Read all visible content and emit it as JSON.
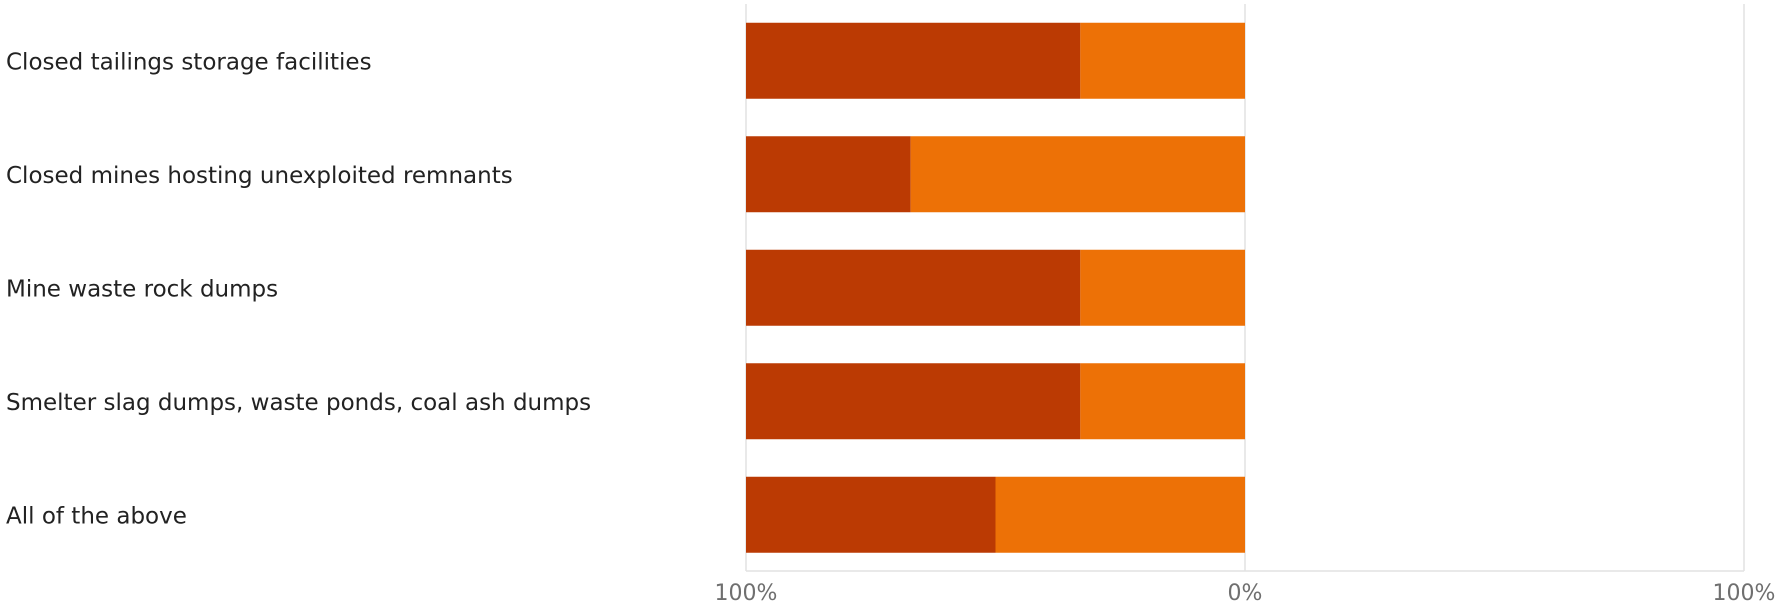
{
  "chart_data": {
    "type": "bar",
    "orientation": "horizontal",
    "stacked": true,
    "categories": [
      "Closed tailings storage facilities",
      "Closed mines hosting unexploited remnants",
      "Mine waste rock dumps",
      "Smelter slag dumps, waste ponds, coal ash dumps",
      "All of the above"
    ],
    "series": [
      {
        "values": [
          67,
          33,
          67,
          67,
          50
        ],
        "color": "#bb3a03"
      },
      {
        "values": [
          33,
          67,
          33,
          33,
          50
        ],
        "color": "#ed7106"
      }
    ],
    "xlim": [
      -100,
      100
    ],
    "x_ticks": [
      "100%",
      "0%",
      "100%"
    ],
    "grid": true,
    "legend": "none",
    "title": "",
    "xlabel": "",
    "ylabel": ""
  }
}
